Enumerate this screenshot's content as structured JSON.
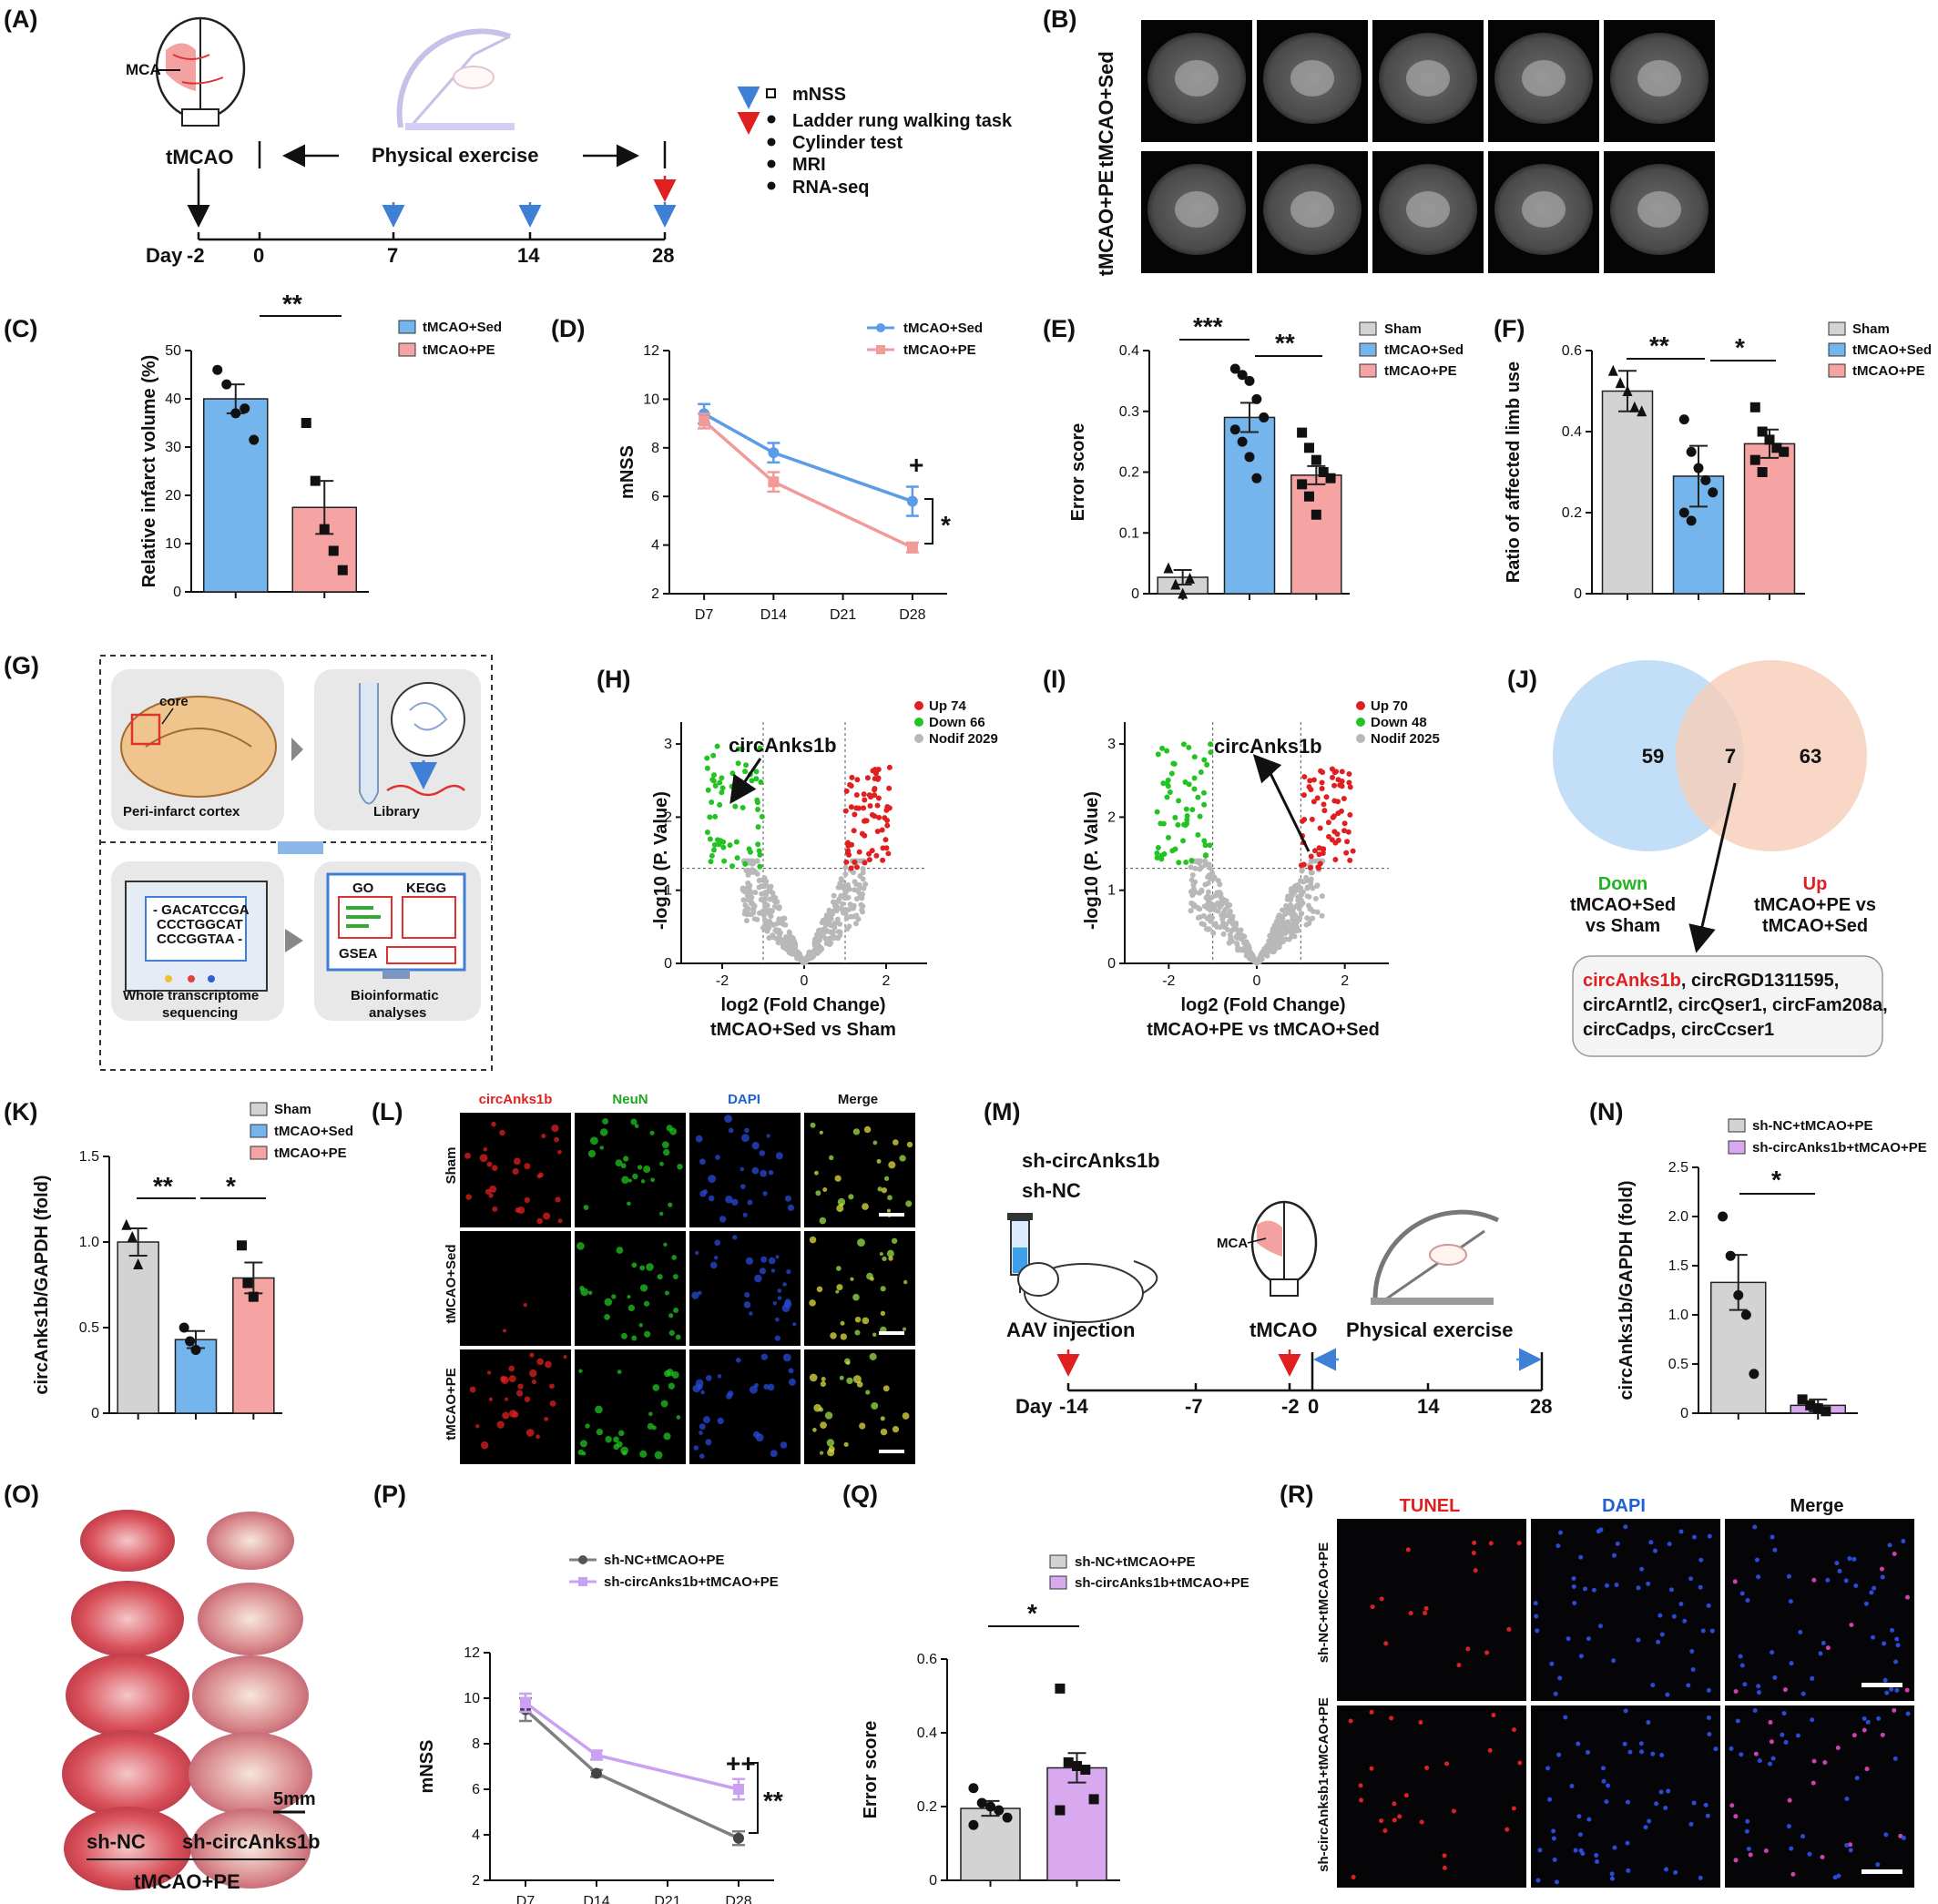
{
  "panel_labels": {
    "A": "(A)",
    "B": "(B)",
    "C": "(C)",
    "D": "(D)",
    "E": "(E)",
    "F": "(F)",
    "G": "(G)",
    "H": "(H)",
    "I": "(I)",
    "J": "(J)",
    "K": "(K)",
    "L": "(L)",
    "M": "(M)",
    "N": "(N)",
    "O": "(O)",
    "P": "(P)",
    "Q": "(Q)",
    "R": "(R)"
  },
  "colors": {
    "sed": "#73B5EC",
    "pe": "#F5A3A3",
    "sham": "#D3D3D3",
    "shnc": "#D3D3D3",
    "shcirc": "#D9A9F0",
    "line_sed": "#5B9BE8",
    "line_pe": "#F29A9A",
    "line_shnc": "#7F7F7F",
    "line_shcirc": "#C9A0F2",
    "up": "#E02020",
    "down": "#22C322",
    "nodif": "#B8B8B8"
  },
  "panelA": {
    "mca": "MCA",
    "tmcao": "tMCAO",
    "exercise": "Physical exercise",
    "day_label": "Day",
    "days": [
      "-2",
      "0",
      "7",
      "14",
      "28"
    ],
    "legend": [
      "mNSS",
      "Ladder rung walking task",
      "Cylinder test",
      "MRI",
      "RNA-seq"
    ]
  },
  "panelB": {
    "rows": [
      "tMCAO+Sed",
      "tMCAO+PE"
    ]
  },
  "panelC": {
    "ylabel": "Relative infarct volume (%)",
    "legend": [
      "tMCAO+Sed",
      "tMCAO+PE"
    ],
    "sig": "**"
  },
  "panelD": {
    "ylabel": "mNSS",
    "legend": [
      "tMCAO+Sed",
      "tMCAO+PE"
    ],
    "plus": "+",
    "sig": "*"
  },
  "panelE": {
    "ylabel": "Error score",
    "legend": [
      "Sham",
      "tMCAO+Sed",
      "tMCAO+PE"
    ],
    "sig1": "***",
    "sig2": "**"
  },
  "panelF": {
    "ylabel": "Ratio of affected limb use",
    "legend": [
      "Sham",
      "tMCAO+Sed",
      "tMCAO+PE"
    ],
    "sig1": "**",
    "sig2": "*"
  },
  "panelG": {
    "core": "core",
    "peri": "Peri-infarct cortex",
    "library": "Library",
    "seq": [
      "- GACATCCGA",
      "CCCTGGCAT",
      "CCCGGTAA -"
    ],
    "wts": "Whole transcriptome",
    "wts2": "sequencing",
    "go": "GO",
    "kegg": "KEGG",
    "gsea": "GSEA",
    "bio": "Bioinformatic",
    "bio2": "analyses"
  },
  "panelH": {
    "legend": [
      "Up 74",
      "Down 66",
      "Nodif 2029"
    ],
    "gene": "circAnks1b",
    "ylabel": "-log10 (P. Value)",
    "xlabel": "log2 (Fold Change)",
    "xlabel2": "tMCAO+Sed vs Sham"
  },
  "panelI": {
    "legend": [
      "Up 70",
      "Down 48",
      "Nodif 2025"
    ],
    "gene": "circAnks1b",
    "ylabel": "-log10 (P. Value)",
    "xlabel": "log2 (Fold Change)",
    "xlabel2": "tMCAO+PE vs tMCAO+Sed"
  },
  "panelJ": {
    "left": "59",
    "mid": "7",
    "right": "63",
    "down": "Down",
    "down1": "tMCAO+Sed",
    "down2": "vs Sham",
    "up": "Up",
    "up1": "tMCAO+PE vs",
    "up2": "tMCAO+Sed",
    "gene_red": "circAnks1b",
    "genes1": ", circRGD1311595,",
    "genes2": "circArntl2, circQser1, circFam208a,",
    "genes3": "circCadps, circCcser1"
  },
  "panelK": {
    "ylabel": "circAnks1b/GAPDH (fold)",
    "legend": [
      "Sham",
      "tMCAO+Sed",
      "tMCAO+PE"
    ],
    "sig1": "**",
    "sig2": "*"
  },
  "panelL": {
    "cols": [
      "circAnks1b",
      "NeuN",
      "DAPI",
      "Merge"
    ],
    "rows": [
      "Sham",
      "tMCAO+Sed",
      "tMCAO+PE"
    ]
  },
  "panelM": {
    "sh1": "sh-circAnks1b",
    "sh2": "sh-NC",
    "aav": "AAV injection",
    "mca": "MCA",
    "tmcao": "tMCAO",
    "exercise": "Physical exercise",
    "day_label": "Day",
    "days": [
      "-14",
      "-7",
      "-2",
      "0",
      "14",
      "28"
    ]
  },
  "panelN": {
    "ylabel": "circAnks1b/GAPDH (fold)",
    "legend": [
      "sh-NC+tMCAO+PE",
      "sh-circAnks1b+tMCAO+PE"
    ],
    "sig": "*"
  },
  "panelO": {
    "scale": "5mm",
    "left": "sh-NC",
    "right": "sh-circAnks1b",
    "bottom": "tMCAO+PE"
  },
  "panelP": {
    "ylabel": "mNSS",
    "legend": [
      "sh-NC+tMCAO+PE",
      "sh-circAnks1b+tMCAO+PE"
    ],
    "plus": "++",
    "sig": "**"
  },
  "panelQ": {
    "ylabel": "Error score",
    "legend": [
      "sh-NC+tMCAO+PE",
      "sh-circAnks1b+tMCAO+PE"
    ],
    "sig": "*"
  },
  "panelR": {
    "cols": [
      "TUNEL",
      "DAPI",
      "Merge"
    ],
    "rows": [
      "sh-NC+tMCAO+PE",
      "sh-circAnksb1+tMCAO+PE"
    ]
  },
  "chart_data": [
    {
      "id": "C",
      "type": "bar",
      "categories": [
        "tMCAO+Sed",
        "tMCAO+PE"
      ],
      "values": [
        40,
        17.5
      ],
      "errors": [
        3,
        5.5
      ],
      "ylim": [
        0,
        50
      ],
      "yticks": [
        0,
        10,
        20,
        30,
        40,
        50
      ],
      "ylabel": "Relative infarct volume (%)",
      "points": [
        [
          46,
          43,
          37,
          38,
          31.5
        ],
        [
          35,
          23,
          13,
          8.5,
          4.5
        ]
      ]
    },
    {
      "id": "D",
      "type": "line",
      "x": [
        "D7",
        "D14",
        "D21",
        "D28"
      ],
      "ylim": [
        2,
        12
      ],
      "yticks": [
        2,
        4,
        6,
        8,
        10,
        12
      ],
      "ylabel": "mNSS",
      "series": [
        {
          "name": "tMCAO+Sed",
          "x": [
            "D7",
            "D14",
            "D28"
          ],
          "values": [
            9.4,
            7.8,
            5.8
          ],
          "errors": [
            0.4,
            0.4,
            0.6
          ]
        },
        {
          "name": "tMCAO+PE",
          "x": [
            "D7",
            "D14",
            "D28"
          ],
          "values": [
            9.1,
            6.6,
            3.9
          ],
          "errors": [
            0.3,
            0.4,
            0.2
          ]
        }
      ]
    },
    {
      "id": "E",
      "type": "bar",
      "categories": [
        "Sham",
        "tMCAO+Sed",
        "tMCAO+PE"
      ],
      "values": [
        0.027,
        0.29,
        0.195
      ],
      "errors": [
        0.012,
        0.024,
        0.015
      ],
      "ylim": [
        0,
        0.4
      ],
      "yticks": [
        0,
        0.1,
        0.2,
        0.3,
        0.4
      ],
      "ylabel": "Error score",
      "points": [
        [
          0.042,
          0.015,
          0.0,
          0.025
        ],
        [
          0.37,
          0.36,
          0.35,
          0.32,
          0.29,
          0.27,
          0.25,
          0.225,
          0.19
        ],
        [
          0.265,
          0.24,
          0.22,
          0.2,
          0.19,
          0.18,
          0.16,
          0.13
        ]
      ]
    },
    {
      "id": "F",
      "type": "bar",
      "categories": [
        "Sham",
        "tMCAO+Sed",
        "tMCAO+PE"
      ],
      "values": [
        0.5,
        0.29,
        0.37
      ],
      "errors": [
        0.05,
        0.075,
        0.035
      ],
      "ylim": [
        0,
        0.6
      ],
      "yticks": [
        0,
        0.2,
        0.4,
        0.6
      ],
      "ylabel": "Ratio of affected limb use",
      "points": [
        [
          0.55,
          0.52,
          0.5,
          0.46,
          0.45
        ],
        [
          0.43,
          0.35,
          0.31,
          0.28,
          0.25,
          0.2,
          0.18
        ],
        [
          0.46,
          0.4,
          0.38,
          0.36,
          0.35,
          0.33,
          0.3
        ]
      ]
    },
    {
      "id": "K",
      "type": "bar",
      "categories": [
        "Sham",
        "tMCAO+Sed",
        "tMCAO+PE"
      ],
      "values": [
        1.0,
        0.43,
        0.79
      ],
      "errors": [
        0.08,
        0.05,
        0.09
      ],
      "ylim": [
        0,
        1.5
      ],
      "yticks": [
        0,
        0.5,
        1.0,
        1.5
      ],
      "ylabel": "circAnks1b/GAPDH (fold)",
      "points": [
        [
          1.1,
          1.03,
          0.87
        ],
        [
          0.5,
          0.42,
          0.37
        ],
        [
          0.98,
          0.76,
          0.68
        ]
      ]
    },
    {
      "id": "N",
      "type": "bar",
      "categories": [
        "sh-NC+tMCAO+PE",
        "sh-circAnks1b+tMCAO+PE"
      ],
      "values": [
        1.33,
        0.08
      ],
      "errors": [
        0.28,
        0.06
      ],
      "ylim": [
        0,
        2.5
      ],
      "yticks": [
        0,
        0.5,
        1.0,
        1.5,
        2.0,
        2.5
      ],
      "ylabel": "circAnks1b/GAPDH (fold)",
      "points": [
        [
          2.0,
          1.6,
          1.2,
          1.0,
          0.4
        ],
        [
          0.14,
          0.08,
          0.05,
          0.02
        ]
      ]
    },
    {
      "id": "P",
      "type": "line",
      "x": [
        "D7",
        "D14",
        "D21",
        "D28"
      ],
      "ylim": [
        2,
        12
      ],
      "yticks": [
        2,
        4,
        6,
        8,
        10,
        12
      ],
      "ylabel": "mNSS",
      "series": [
        {
          "name": "sh-NC+tMCAO+PE",
          "x": [
            "D7",
            "D14",
            "D28"
          ],
          "values": [
            9.5,
            6.7,
            3.85
          ],
          "errors": [
            0.5,
            0.15,
            0.3
          ]
        },
        {
          "name": "sh-circAnks1b+tMCAO+PE",
          "x": [
            "D7",
            "D14",
            "D28"
          ],
          "values": [
            9.8,
            7.5,
            6.0
          ],
          "errors": [
            0.4,
            0.2,
            0.45
          ]
        }
      ]
    },
    {
      "id": "Q",
      "type": "bar",
      "categories": [
        "sh-NC+tMCAO+PE",
        "sh-circAnks1b+tMCAO+PE"
      ],
      "values": [
        0.195,
        0.305
      ],
      "errors": [
        0.02,
        0.04
      ],
      "ylim": [
        0,
        0.6
      ],
      "yticks": [
        0,
        0.2,
        0.4,
        0.6
      ],
      "ylabel": "Error score",
      "points": [
        [
          0.25,
          0.21,
          0.2,
          0.19,
          0.17,
          0.15
        ],
        [
          0.52,
          0.32,
          0.31,
          0.3,
          0.22,
          0.19
        ]
      ]
    }
  ]
}
